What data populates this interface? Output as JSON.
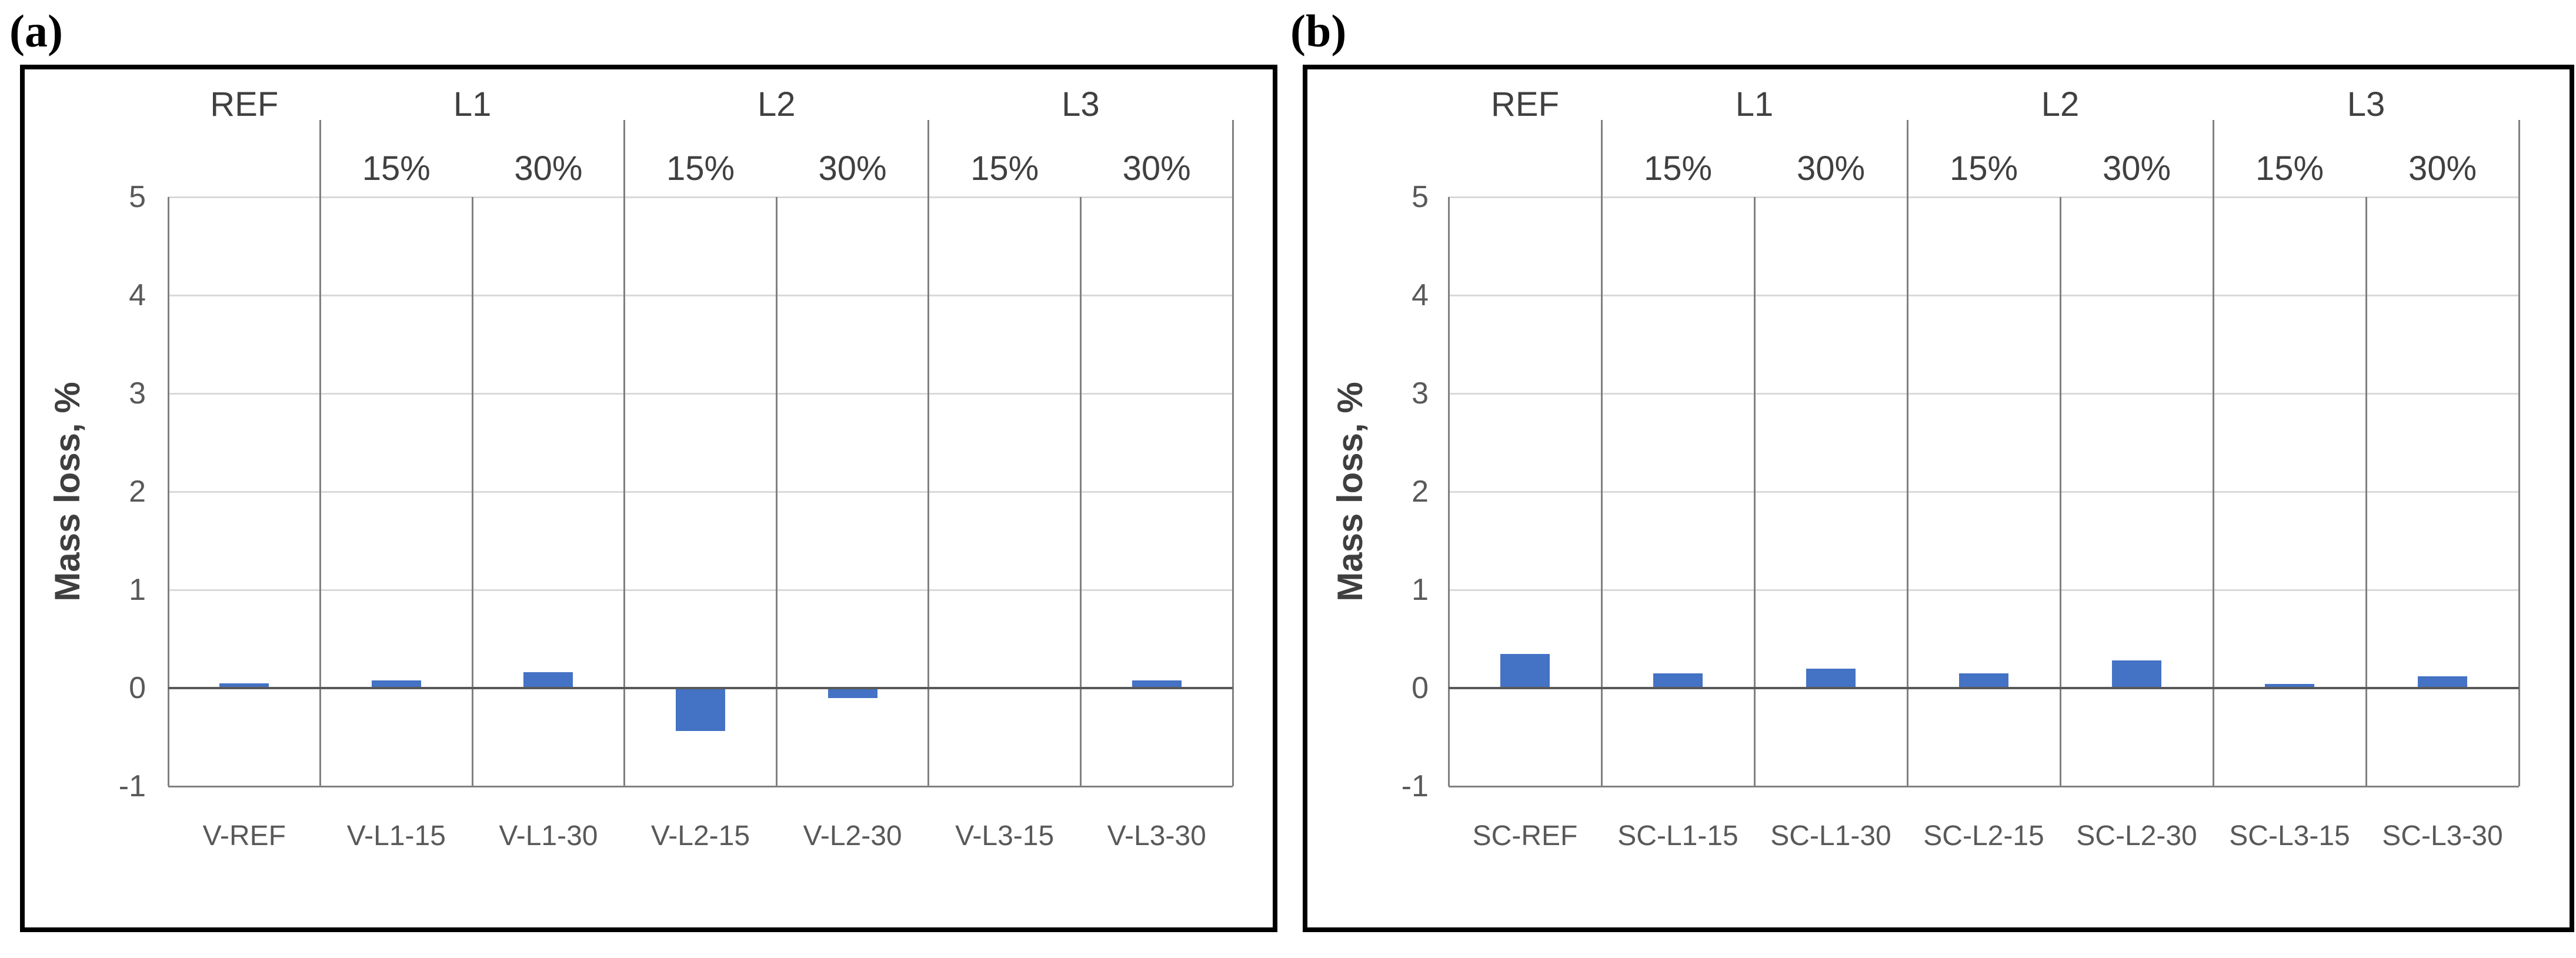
{
  "panels": [
    {
      "corner_label": "(a)"
    },
    {
      "corner_label": "(b)"
    }
  ],
  "colors": {
    "bar": "#4472C4",
    "gridline": "#D9D9D9",
    "axis_line": "#808080",
    "zero_line": "#595959",
    "tick_text": "#595959",
    "header_text": "#404040",
    "panel_border": "#000000"
  },
  "chart_data": [
    {
      "type": "bar",
      "panel": "a",
      "title": "",
      "xlabel": "",
      "ylabel": "Mass loss, %",
      "ylim": [
        -1,
        5
      ],
      "yticks": [
        5,
        4,
        3,
        2,
        1,
        0,
        -1
      ],
      "grid": true,
      "legend": null,
      "group_labels": [
        "REF",
        "L1",
        "L2",
        "L3"
      ],
      "group_spans": [
        [
          0,
          1
        ],
        [
          1,
          3
        ],
        [
          3,
          5
        ],
        [
          5,
          7
        ]
      ],
      "column_sublabels": [
        "",
        "15%",
        "30%",
        "15%",
        "30%",
        "15%",
        "30%"
      ],
      "categories": [
        "V-REF",
        "V-L1-15",
        "V-L1-30",
        "V-L2-15",
        "V-L2-30",
        "V-L3-15",
        "V-L3-30"
      ],
      "values": [
        0.05,
        0.08,
        0.16,
        -0.44,
        -0.1,
        0.0,
        0.08
      ]
    },
    {
      "type": "bar",
      "panel": "b",
      "title": "",
      "xlabel": "",
      "ylabel": "Mass loss, %",
      "ylim": [
        -1,
        5
      ],
      "yticks": [
        5,
        4,
        3,
        2,
        1,
        0,
        -1
      ],
      "grid": true,
      "legend": null,
      "group_labels": [
        "REF",
        "L1",
        "L2",
        "L3"
      ],
      "group_spans": [
        [
          0,
          1
        ],
        [
          1,
          3
        ],
        [
          3,
          5
        ],
        [
          5,
          7
        ]
      ],
      "column_sublabels": [
        "",
        "15%",
        "30%",
        "15%",
        "30%",
        "15%",
        "30%"
      ],
      "categories": [
        "SC-REF",
        "SC-L1-15",
        "SC-L1-30",
        "SC-L2-15",
        "SC-L2-30",
        "SC-L3-15",
        "SC-L3-30"
      ],
      "values": [
        0.35,
        0.15,
        0.2,
        0.15,
        0.28,
        0.04,
        0.12
      ]
    }
  ]
}
